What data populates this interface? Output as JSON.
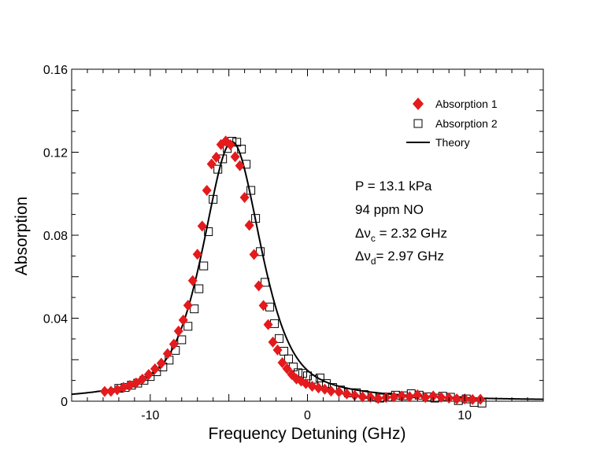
{
  "chart_data": {
    "type": "scatter",
    "title": "",
    "xlabel": "Frequency Detuning (GHz)",
    "ylabel": "Absorption",
    "xlim": [
      -15,
      15
    ],
    "ylim": [
      0,
      0.16
    ],
    "x_ticks": [
      -10,
      0,
      10
    ],
    "x_tick_labels": [
      "-10",
      "0",
      "10"
    ],
    "y_ticks": [
      0,
      0.04,
      0.08,
      0.12,
      0.16
    ],
    "y_tick_labels": [
      "0",
      "0.04",
      "0.08",
      "0.12",
      "0.16"
    ],
    "grid": false,
    "legend_position": "top-right",
    "series": [
      {
        "name": "Absorption 1",
        "marker": "filled-diamond",
        "color": "#e41a1c",
        "x": [
          -12.9,
          -12.5,
          -12.1,
          -11.7,
          -11.3,
          -10.9,
          -10.5,
          -10.1,
          -9.7,
          -9.3,
          -8.9,
          -8.5,
          -8.2,
          -7.9,
          -7.6,
          -7.3,
          -7.0,
          -6.7,
          -6.4,
          -6.1,
          -5.8,
          -5.5,
          -5.2,
          -4.9,
          -4.6,
          -4.3,
          -4.0,
          -3.7,
          -3.4,
          -3.1,
          -2.8,
          -2.5,
          -2.2,
          -1.9,
          -1.6,
          -1.3,
          -1.0,
          -0.7,
          -0.4,
          -0.1,
          0.3,
          0.7,
          1.1,
          1.5,
          2.0,
          2.5,
          3.0,
          3.5,
          4.0,
          4.5,
          5.0,
          5.5,
          6.0,
          6.5,
          7.0,
          7.5,
          8.0,
          8.5,
          9.0,
          9.5,
          10.0,
          10.5,
          11.0
        ],
        "y": [
          0.0047,
          0.0048,
          0.0055,
          0.0067,
          0.0076,
          0.0088,
          0.0106,
          0.0129,
          0.0156,
          0.0183,
          0.0229,
          0.0275,
          0.0338,
          0.0391,
          0.0462,
          0.0581,
          0.0708,
          0.0844,
          0.1016,
          0.1143,
          0.1176,
          0.1237,
          0.1254,
          0.1236,
          0.1178,
          0.1135,
          0.0982,
          0.0848,
          0.0707,
          0.0556,
          0.0461,
          0.0369,
          0.0285,
          0.0247,
          0.0186,
          0.0157,
          0.0129,
          0.0107,
          0.0097,
          0.0085,
          0.0072,
          0.0064,
          0.0058,
          0.0049,
          0.0045,
          0.0035,
          0.0028,
          0.0021,
          0.0019,
          0.0013,
          0.0018,
          0.0021,
          0.0025,
          0.0022,
          0.0031,
          0.0018,
          0.0025,
          0.0019,
          0.0015,
          0.0011,
          0.0011,
          0.0008,
          0.0009
        ]
      },
      {
        "name": "Absorption 2",
        "marker": "open-square",
        "color": "#000000",
        "x": [
          -12.0,
          -11.6,
          -11.2,
          -10.8,
          -10.4,
          -10.0,
          -9.6,
          -9.2,
          -8.8,
          -8.4,
          -8.0,
          -7.6,
          -7.2,
          -6.9,
          -6.6,
          -6.3,
          -6.0,
          -5.7,
          -5.4,
          -5.1,
          -4.8,
          -4.5,
          -4.2,
          -3.9,
          -3.6,
          -3.3,
          -3.0,
          -2.7,
          -2.4,
          -2.1,
          -1.8,
          -1.5,
          -1.2,
          -0.9,
          -0.6,
          -0.3,
          0.0,
          0.4,
          0.8,
          1.2,
          1.6,
          2.1,
          2.6,
          3.1,
          3.6,
          4.1,
          4.6,
          5.1,
          5.6,
          6.1,
          6.6,
          7.1,
          7.6,
          8.1,
          8.6,
          9.1,
          9.6,
          10.1,
          10.6,
          11.1
        ],
        "y": [
          0.0062,
          0.0066,
          0.0077,
          0.0087,
          0.0101,
          0.0119,
          0.0142,
          0.0165,
          0.0198,
          0.0245,
          0.0296,
          0.0361,
          0.0445,
          0.0542,
          0.0652,
          0.0817,
          0.0973,
          0.1118,
          0.1168,
          0.1218,
          0.1253,
          0.1248,
          0.1215,
          0.1142,
          0.1016,
          0.0881,
          0.0721,
          0.0573,
          0.0454,
          0.0374,
          0.0302,
          0.0241,
          0.0204,
          0.0165,
          0.0137,
          0.0134,
          0.0122,
          0.0106,
          0.0112,
          0.0085,
          0.0066,
          0.0054,
          0.004,
          0.0041,
          0.0032,
          0.0024,
          0.0015,
          0.002,
          0.0029,
          0.0026,
          0.0036,
          0.0029,
          0.0021,
          0.0015,
          0.0024,
          0.0019,
          0.0003,
          0.0011,
          -0.0006,
          -0.0009
        ]
      },
      {
        "name": "Theory",
        "marker": "line",
        "color": "#000000",
        "center": -4.8,
        "peak": 0.125,
        "collisional_fwhm": 2.32,
        "doppler_fwhm": 2.97
      }
    ],
    "annotations": [
      {
        "lines": [
          {
            "text": "P = 13.1 kPa"
          },
          {
            "text": "94 ppm NO"
          },
          {
            "main": "Δν",
            "sub": "c",
            "rest": " = 2.32 GHz"
          },
          {
            "main": "Δν",
            "sub": "d",
            "rest": "= 2.97 GHz"
          }
        ]
      }
    ]
  }
}
